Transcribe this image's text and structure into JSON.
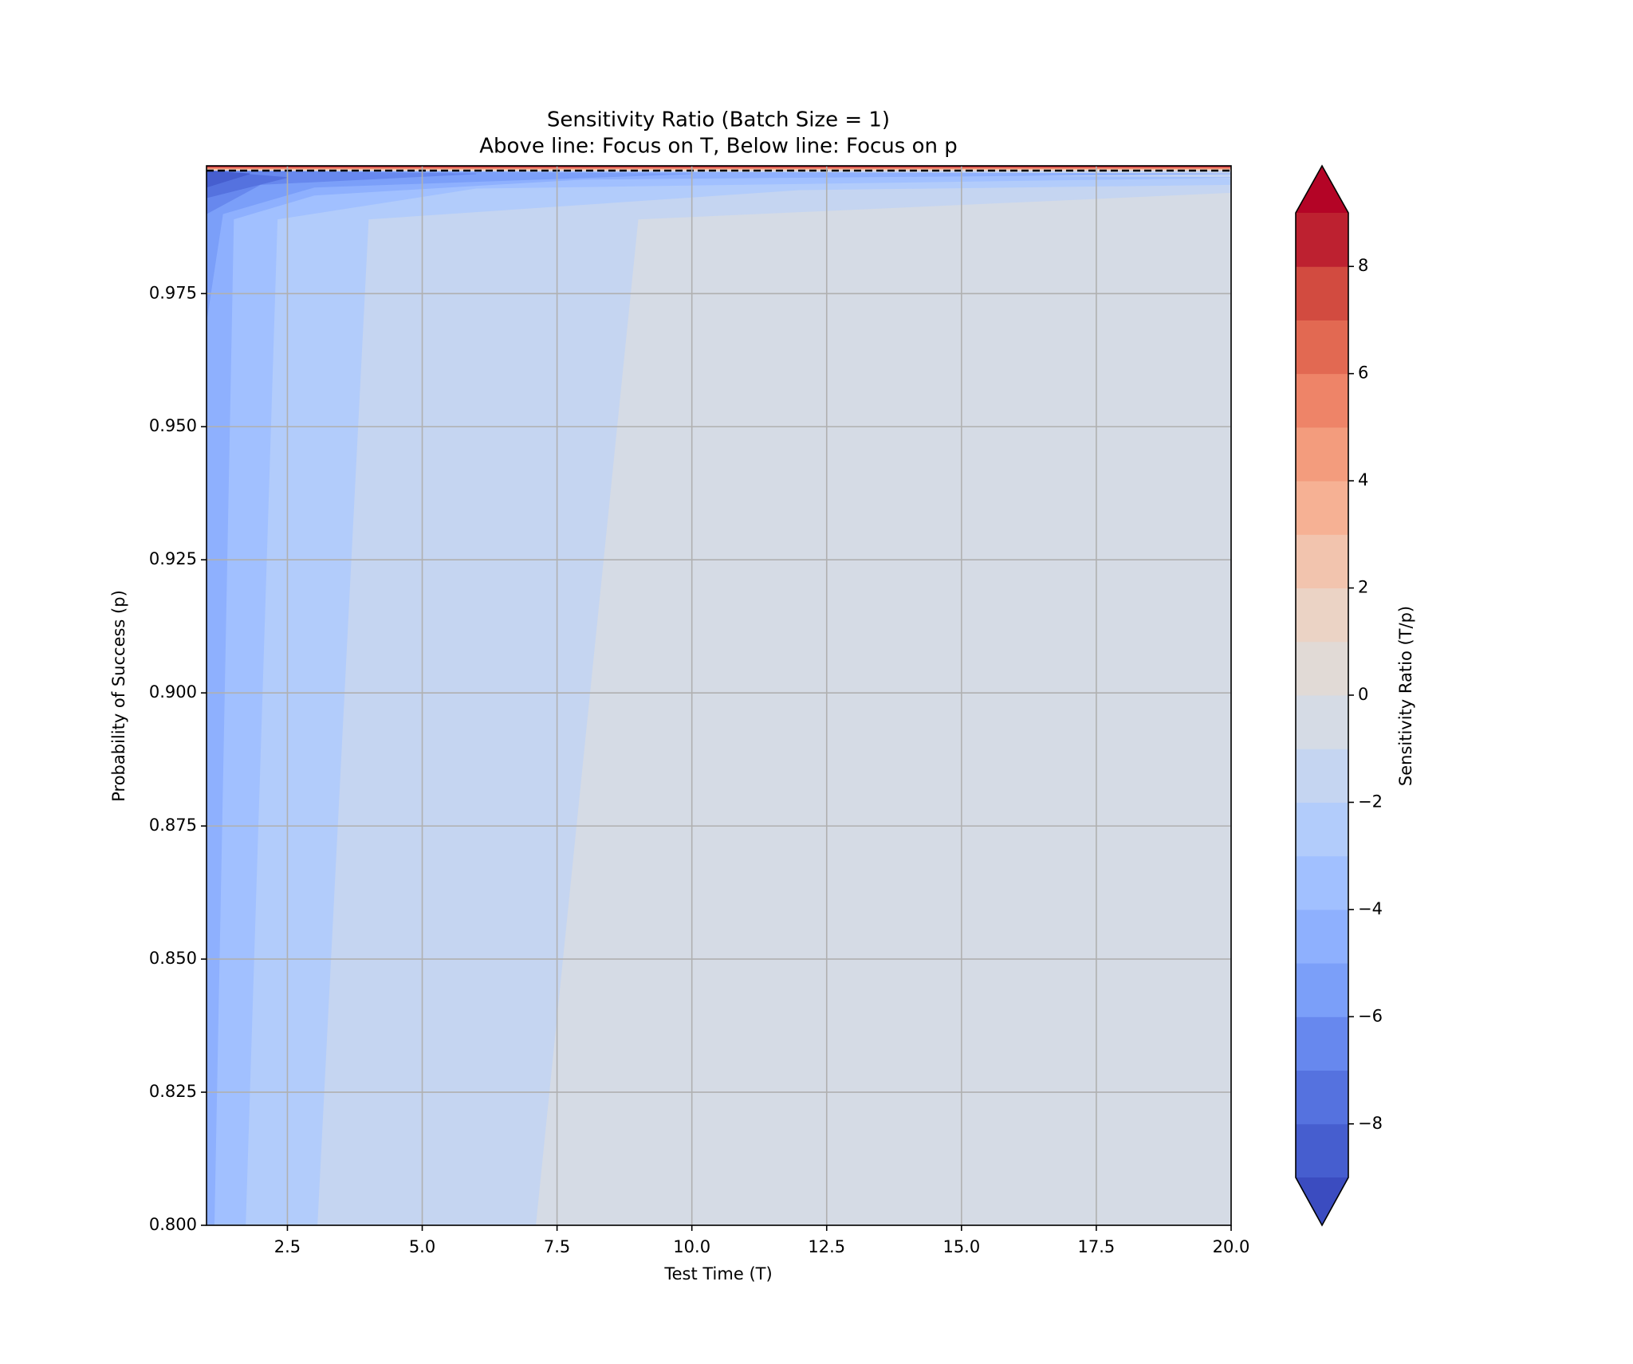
{
  "chart_data": {
    "type": "contourf",
    "title": "Sensitivity Ratio (Batch Size = 1)",
    "subtitle": "Above line: Focus on T, Below line: Focus on p",
    "x_label": "Test Time (T)",
    "y_label": "Probability of Success (p)",
    "colorbar_label": "Sensitivity Ratio (T/p)",
    "xlim": [
      1,
      20
    ],
    "ylim": [
      0.8,
      0.999
    ],
    "xticks": [
      {
        "value": 2.5,
        "label": "2.5"
      },
      {
        "value": 5,
        "label": "5.0"
      },
      {
        "value": 7.5,
        "label": "7.5"
      },
      {
        "value": 10,
        "label": "10.0"
      },
      {
        "value": 12.5,
        "label": "12.5"
      },
      {
        "value": 15,
        "label": "15.0"
      },
      {
        "value": 17.5,
        "label": "17.5"
      },
      {
        "value": 20,
        "label": "20.0"
      }
    ],
    "yticks": [
      {
        "value": 0.8,
        "label": "0.800"
      },
      {
        "value": 0.825,
        "label": "0.825"
      },
      {
        "value": 0.85,
        "label": "0.850"
      },
      {
        "value": 0.875,
        "label": "0.875"
      },
      {
        "value": 0.9,
        "label": "0.900"
      },
      {
        "value": 0.925,
        "label": "0.925"
      },
      {
        "value": 0.95,
        "label": "0.950"
      },
      {
        "value": 0.975,
        "label": "0.975"
      }
    ],
    "grid": true,
    "levels": [
      -9,
      -8,
      -7,
      -6,
      -5,
      -4,
      -3,
      -2,
      -1,
      0,
      1,
      2,
      3,
      4,
      5,
      6,
      7,
      8,
      9
    ],
    "colors": [
      "#465ecf",
      "#5572df",
      "#6788ee",
      "#7b9ff9",
      "#8eb0fe",
      "#a1c0ff",
      "#b2ccfb",
      "#c5d5f1",
      "#d5dbe5",
      "#e1dad6",
      "#ebd3c5",
      "#f2c4ae",
      "#f6b194",
      "#f39c7d",
      "#ee8468",
      "#e26952",
      "#d24b40",
      "#bd2130"
    ],
    "extend_colors": {
      "under": "#3b4cc0",
      "over": "#b40426"
    },
    "colorbar_ticks": [
      {
        "value": -8,
        "label": "−8"
      },
      {
        "value": -6,
        "label": "−6"
      },
      {
        "value": -4,
        "label": "−4"
      },
      {
        "value": -2,
        "label": "−2"
      },
      0,
      2,
      4,
      6,
      8
    ],
    "regions": [
      {
        "band": 8,
        "x": [
          1,
          20,
          20,
          1
        ],
        "y": [
          0.8,
          0.8,
          0.998,
          0.998
        ]
      },
      {
        "band": 7,
        "x": [
          1,
          7.1,
          9.0,
          20,
          20,
          1
        ],
        "y": [
          0.8,
          0.8,
          0.989,
          0.994,
          0.998,
          0.998
        ]
      },
      {
        "band": 6,
        "x": [
          1,
          3.05,
          4.0,
          12,
          20,
          20,
          1
        ],
        "y": [
          0.8,
          0.8,
          0.989,
          0.9945,
          0.9955,
          0.9965,
          0.998
        ]
      },
      {
        "band": 5,
        "x": [
          1,
          1.72,
          2.31,
          6,
          20,
          1
        ],
        "y": [
          0.8,
          0.8,
          0.989,
          0.9948,
          0.9968,
          0.998
        ]
      },
      {
        "band": 4,
        "x": [
          1,
          1.14,
          1.5,
          3,
          8,
          20,
          1
        ],
        "y": [
          0.8,
          0.8,
          0.989,
          0.9935,
          0.9965,
          0.9975,
          0.998
        ]
      },
      {
        "band": 3,
        "x": [
          1,
          1.3,
          3,
          10,
          1
        ],
        "y": [
          0.97,
          0.99,
          0.995,
          0.9975,
          0.998
        ]
      },
      {
        "band": 2,
        "x": [
          1,
          2,
          6,
          1
        ],
        "y": [
          0.99,
          0.9955,
          0.9975,
          0.998
        ]
      },
      {
        "band": 1,
        "x": [
          1,
          2.5,
          1
        ],
        "y": [
          0.993,
          0.9968,
          0.998
        ]
      },
      {
        "band": 0,
        "x": [
          1,
          1.8,
          1
        ],
        "y": [
          0.995,
          0.9975,
          0.998
        ]
      },
      {
        "band": 11,
        "x": [
          1,
          20,
          20,
          1
        ],
        "y": [
          0.9982,
          0.9982,
          0.999,
          0.999
        ]
      },
      {
        "band": 14,
        "x": [
          1,
          20,
          20,
          1
        ],
        "y": [
          0.9985,
          0.9985,
          0.999,
          0.999
        ]
      },
      {
        "band": 17,
        "x": [
          1,
          20,
          20,
          1
        ],
        "y": [
          0.9988,
          0.9988,
          0.999,
          0.999
        ]
      }
    ],
    "threshold_line": {
      "y": 0.9981
    }
  }
}
